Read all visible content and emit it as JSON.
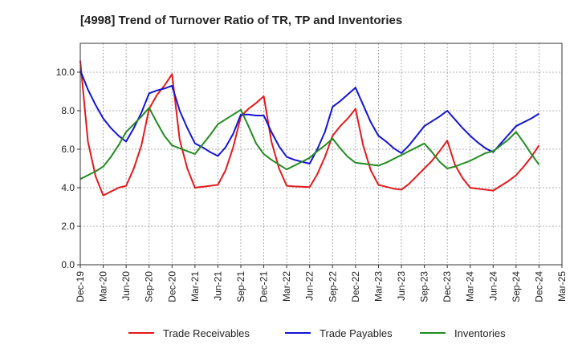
{
  "chart_data": {
    "type": "line",
    "title": "[4998]  Trend of Turnover Ratio of TR, TP and Inventories",
    "xlabel": "",
    "ylabel": "",
    "ylim": [
      0,
      11.5
    ],
    "yticks": [
      "0.0",
      "2.0",
      "4.0",
      "6.0",
      "8.0",
      "10.0"
    ],
    "ytick_values": [
      0,
      2,
      4,
      6,
      8,
      10
    ],
    "x": [
      "Dec-19",
      "Jan-20",
      "Feb-20",
      "Mar-20",
      "Apr-20",
      "May-20",
      "Jun-20",
      "Jul-20",
      "Aug-20",
      "Sep-20",
      "Oct-20",
      "Nov-20",
      "Dec-20",
      "Jan-21",
      "Feb-21",
      "Mar-21",
      "Apr-21",
      "May-21",
      "Jun-21",
      "Jul-21",
      "Aug-21",
      "Sep-21",
      "Oct-21",
      "Nov-21",
      "Dec-21",
      "Jan-22",
      "Feb-22",
      "Mar-22",
      "Apr-22",
      "May-22",
      "Jun-22",
      "Jul-22",
      "Aug-22",
      "Sep-22",
      "Oct-22",
      "Nov-22",
      "Dec-22",
      "Jan-23",
      "Feb-23",
      "Mar-23",
      "Apr-23",
      "May-23",
      "Jun-23",
      "Jul-23",
      "Aug-23",
      "Sep-23",
      "Oct-23",
      "Nov-23",
      "Dec-23",
      "Jan-24",
      "Feb-24",
      "Mar-24",
      "Apr-24",
      "May-24",
      "Jun-24",
      "Jul-24",
      "Aug-24",
      "Sep-24",
      "Oct-24",
      "Nov-24",
      "Dec-24"
    ],
    "xticks": [
      "Dec-19",
      "Mar-20",
      "Jun-20",
      "Sep-20",
      "Dec-20",
      "Mar-21",
      "Jun-21",
      "Sep-21",
      "Dec-21",
      "Mar-22",
      "Jun-22",
      "Sep-22",
      "Dec-22",
      "Mar-23",
      "Jun-23",
      "Sep-23",
      "Dec-23",
      "Mar-24",
      "Jun-24",
      "Sep-24",
      "Dec-24",
      "Mar-25"
    ],
    "series": [
      {
        "name": "Trade Receivables",
        "color": "#e31a1c",
        "values": [
          10.6,
          6.4,
          4.6,
          3.6,
          3.8,
          4.0,
          4.1,
          5.0,
          6.2,
          8.1,
          8.8,
          9.3,
          9.9,
          6.5,
          5.0,
          4.0,
          4.05,
          4.1,
          4.15,
          4.9,
          6.1,
          7.7,
          8.1,
          8.4,
          8.75,
          6.4,
          5.0,
          4.1,
          4.07,
          4.05,
          4.03,
          4.7,
          5.6,
          6.7,
          7.2,
          7.6,
          8.1,
          6.2,
          4.9,
          4.15,
          4.05,
          3.95,
          3.9,
          4.2,
          4.6,
          5.0,
          5.4,
          5.9,
          6.45,
          5.2,
          4.5,
          4.0,
          3.95,
          3.9,
          3.85,
          4.1,
          4.35,
          4.65,
          5.1,
          5.6,
          6.2
        ]
      },
      {
        "name": "Trade Payables",
        "color": "#1414d2",
        "values": [
          10.1,
          9.1,
          8.3,
          7.6,
          7.1,
          6.7,
          6.4,
          7.1,
          7.9,
          8.9,
          9.05,
          9.15,
          9.3,
          8.0,
          7.1,
          6.3,
          6.1,
          5.85,
          5.65,
          6.1,
          6.8,
          7.8,
          7.8,
          7.75,
          7.75,
          6.9,
          6.15,
          5.6,
          5.45,
          5.35,
          5.25,
          6.0,
          6.9,
          8.2,
          8.5,
          8.85,
          9.2,
          8.3,
          7.4,
          6.7,
          6.4,
          6.05,
          5.8,
          6.2,
          6.7,
          7.2,
          7.45,
          7.7,
          8.0,
          7.55,
          7.1,
          6.7,
          6.35,
          6.05,
          5.85,
          6.3,
          6.75,
          7.2,
          7.4,
          7.6,
          7.85
        ]
      },
      {
        "name": "Inventories",
        "color": "#228b22",
        "values": [
          4.45,
          4.65,
          4.85,
          5.1,
          5.6,
          6.2,
          6.9,
          7.3,
          7.7,
          8.15,
          7.4,
          6.7,
          6.2,
          6.05,
          5.9,
          5.75,
          6.25,
          6.75,
          7.3,
          7.55,
          7.8,
          8.05,
          7.2,
          6.3,
          5.75,
          5.45,
          5.2,
          4.95,
          5.15,
          5.35,
          5.55,
          5.9,
          6.2,
          6.55,
          6.05,
          5.6,
          5.3,
          5.25,
          5.2,
          5.15,
          5.3,
          5.5,
          5.7,
          5.9,
          6.1,
          6.3,
          5.85,
          5.35,
          5.0,
          5.1,
          5.25,
          5.4,
          5.6,
          5.8,
          5.9,
          6.2,
          6.5,
          6.9,
          6.35,
          5.75,
          5.2
        ]
      }
    ],
    "grid": true,
    "legend": "bottom"
  }
}
